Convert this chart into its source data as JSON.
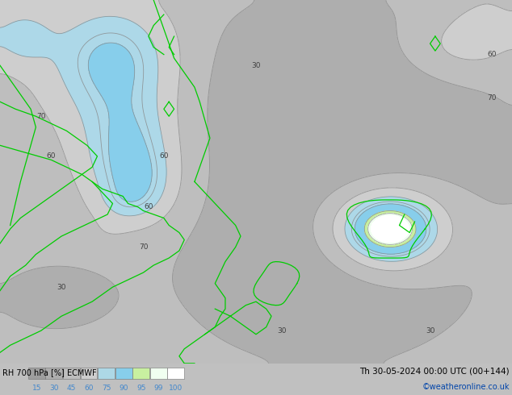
{
  "title_left": "RH 700 hPa [%] ECMWF",
  "title_right": "Th 30-05-2024 00:00 UTC (00+144)",
  "credit": "©weatheronline.co.uk",
  "colorbar_labels": [
    "15",
    "30",
    "45",
    "60",
    "75",
    "90",
    "95",
    "99",
    "100"
  ],
  "colorbar_colors": [
    "#9e9e9e",
    "#adadad",
    "#bdbdbd",
    "#cdcdcd",
    "#add8e6",
    "#87ceeb",
    "#c8f0a0",
    "#f0fff0",
    "#ffffff"
  ],
  "bg_color": "#c0c0c0",
  "fig_width": 6.34,
  "fig_height": 4.9,
  "dpi": 100,
  "contour_label_color": "#404040",
  "contour_line_color": "#888888",
  "coastline_color": "#00cc00",
  "bottom_bar_color": "#d0d0d0"
}
